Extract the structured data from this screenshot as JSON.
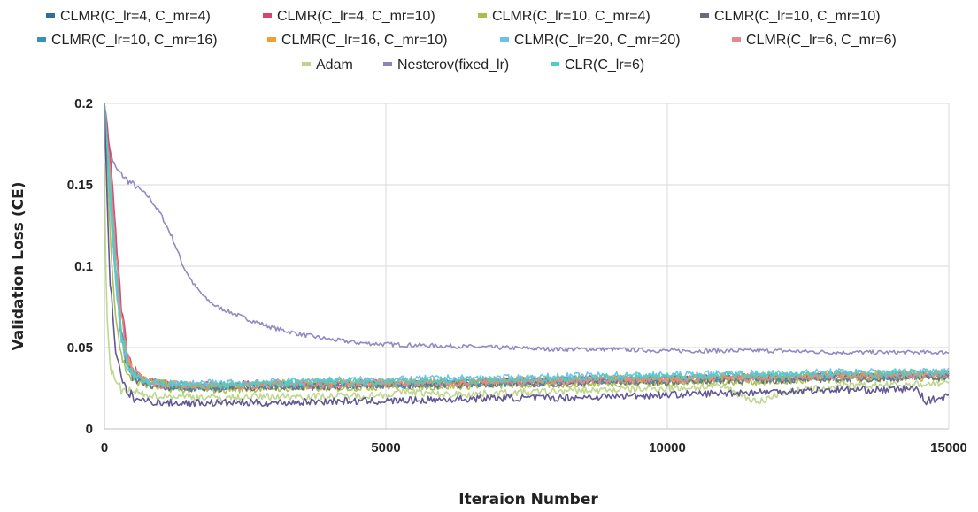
{
  "chart_data": {
    "type": "line",
    "title": "",
    "xlabel": "Iteraion Number",
    "ylabel": "Validation Loss (CE)",
    "xlim": [
      0,
      15000
    ],
    "ylim": [
      0,
      0.2
    ],
    "x_ticks": [
      "0",
      "5000",
      "10000",
      "15000"
    ],
    "y_ticks": [
      "0",
      "0.05",
      "0.1",
      "0.15",
      "0.2"
    ],
    "grid": true,
    "legend_position": "top",
    "series": [
      {
        "name": "CLMR(C_lr=4,  C_mr=4)",
        "color": "#2f6e99",
        "x": [
          0,
          100,
          200,
          300,
          400,
          500,
          700,
          1000,
          1500,
          2000,
          3000,
          4000,
          5000,
          6000,
          7000,
          8000,
          9000,
          10000,
          11000,
          12000,
          13000,
          14000,
          15000
        ],
        "y": [
          0.2,
          0.16,
          0.11,
          0.07,
          0.045,
          0.035,
          0.03,
          0.027,
          0.026,
          0.026,
          0.027,
          0.027,
          0.028,
          0.028,
          0.029,
          0.03,
          0.03,
          0.031,
          0.031,
          0.032,
          0.032,
          0.033,
          0.033
        ]
      },
      {
        "name": "CLMR(C_lr=4,  C_mr=10)",
        "color": "#d6446b",
        "x": [
          0,
          100,
          200,
          300,
          400,
          500,
          700,
          1000,
          1500,
          2000,
          3000,
          4000,
          5000,
          6000,
          7000,
          8000,
          9000,
          10000,
          11000,
          12000,
          13000,
          14000,
          15000
        ],
        "y": [
          0.2,
          0.17,
          0.12,
          0.075,
          0.05,
          0.037,
          0.031,
          0.028,
          0.027,
          0.027,
          0.028,
          0.028,
          0.028,
          0.029,
          0.029,
          0.03,
          0.031,
          0.031,
          0.032,
          0.032,
          0.033,
          0.033,
          0.034
        ]
      },
      {
        "name": "CLMR(C_lr=10,  C_mr=4)",
        "color": "#a9bf4a",
        "x": [
          0,
          100,
          200,
          300,
          400,
          500,
          700,
          1000,
          1500,
          2000,
          3000,
          4000,
          5000,
          6000,
          7000,
          8000,
          9000,
          10000,
          11000,
          12000,
          13000,
          14000,
          15000
        ],
        "y": [
          0.19,
          0.12,
          0.07,
          0.045,
          0.035,
          0.03,
          0.027,
          0.025,
          0.024,
          0.024,
          0.025,
          0.025,
          0.026,
          0.026,
          0.027,
          0.027,
          0.028,
          0.028,
          0.029,
          0.029,
          0.03,
          0.031,
          0.031
        ]
      },
      {
        "name": "CLMR(C_lr=10,  C_mr=10)",
        "color": "#6a6a78",
        "x": [
          0,
          100,
          200,
          300,
          400,
          500,
          700,
          1000,
          1500,
          2000,
          3000,
          4000,
          5000,
          6000,
          7000,
          8000,
          9000,
          10000,
          11000,
          12000,
          13000,
          14000,
          15000
        ],
        "y": [
          0.2,
          0.14,
          0.09,
          0.055,
          0.04,
          0.032,
          0.028,
          0.026,
          0.025,
          0.025,
          0.026,
          0.026,
          0.027,
          0.027,
          0.028,
          0.028,
          0.029,
          0.029,
          0.03,
          0.03,
          0.031,
          0.031,
          0.032
        ]
      },
      {
        "name": "CLMR(C_lr=10,  C_mr=16)",
        "color": "#3a8fc0",
        "x": [
          0,
          100,
          200,
          300,
          400,
          500,
          700,
          1000,
          1500,
          2000,
          3000,
          4000,
          5000,
          6000,
          7000,
          8000,
          9000,
          10000,
          11000,
          12000,
          13000,
          14000,
          15000
        ],
        "y": [
          0.2,
          0.15,
          0.1,
          0.06,
          0.042,
          0.034,
          0.029,
          0.027,
          0.026,
          0.026,
          0.027,
          0.027,
          0.027,
          0.028,
          0.028,
          0.029,
          0.03,
          0.03,
          0.031,
          0.031,
          0.032,
          0.032,
          0.033
        ]
      },
      {
        "name": "CLMR(C_lr=16,  C_mr=10)",
        "color": "#f0a030",
        "x": [
          0,
          100,
          200,
          300,
          400,
          500,
          700,
          1000,
          1500,
          2000,
          3000,
          4000,
          5000,
          6000,
          7000,
          8000,
          9000,
          10000,
          11000,
          12000,
          13000,
          14000,
          15000
        ],
        "y": [
          0.2,
          0.15,
          0.1,
          0.06,
          0.045,
          0.035,
          0.03,
          0.028,
          0.027,
          0.027,
          0.028,
          0.029,
          0.029,
          0.029,
          0.03,
          0.03,
          0.031,
          0.031,
          0.032,
          0.033,
          0.033,
          0.034,
          0.034
        ]
      },
      {
        "name": "CLMR(C_lr=20,  C_mr=20)",
        "color": "#6cc0ea",
        "x": [
          0,
          100,
          200,
          300,
          400,
          500,
          700,
          1000,
          1500,
          2000,
          3000,
          4000,
          5000,
          6000,
          7000,
          8000,
          9000,
          10000,
          11000,
          12000,
          13000,
          14000,
          15000
        ],
        "y": [
          0.2,
          0.14,
          0.09,
          0.055,
          0.04,
          0.033,
          0.029,
          0.028,
          0.028,
          0.028,
          0.029,
          0.03,
          0.03,
          0.031,
          0.031,
          0.032,
          0.033,
          0.033,
          0.034,
          0.034,
          0.035,
          0.035,
          0.036
        ]
      },
      {
        "name": "CLMR(C_lr=6,  C_mr=6)",
        "color": "#e08a8a",
        "x": [
          0,
          100,
          200,
          300,
          400,
          500,
          700,
          1000,
          1500,
          2000,
          3000,
          4000,
          5000,
          6000,
          7000,
          8000,
          9000,
          10000,
          11000,
          12000,
          13000,
          14000,
          15000
        ],
        "y": [
          0.2,
          0.16,
          0.11,
          0.07,
          0.048,
          0.036,
          0.03,
          0.027,
          0.026,
          0.026,
          0.027,
          0.027,
          0.028,
          0.028,
          0.029,
          0.029,
          0.03,
          0.03,
          0.031,
          0.031,
          0.032,
          0.032,
          0.033
        ]
      },
      {
        "name": "Adam",
        "color": "#bcd58a",
        "x": [
          0,
          30,
          60,
          100,
          150,
          200,
          300,
          500,
          800,
          1000,
          1500,
          2000,
          3000,
          4000,
          5000,
          5400,
          6000,
          7000,
          8000,
          9000,
          10000,
          11000,
          11500,
          11600,
          12000,
          13000,
          14000,
          15000
        ],
        "y": [
          0.16,
          0.09,
          0.055,
          0.04,
          0.033,
          0.028,
          0.024,
          0.022,
          0.021,
          0.02,
          0.02,
          0.019,
          0.02,
          0.02,
          0.021,
          0.023,
          0.021,
          0.022,
          0.023,
          0.024,
          0.025,
          0.026,
          0.018,
          0.016,
          0.022,
          0.026,
          0.027,
          0.028
        ]
      },
      {
        "name": "Nesterov(fixed_lr)",
        "color": "#8f82c2",
        "x": [
          0,
          100,
          200,
          400,
          600,
          800,
          1000,
          1200,
          1400,
          1600,
          1800,
          2000,
          2500,
          3000,
          3500,
          4000,
          4500,
          5000,
          6000,
          7000,
          8000,
          9000,
          10000,
          11000,
          12000,
          13000,
          14000,
          15000
        ],
        "y": [
          0.2,
          0.17,
          0.16,
          0.153,
          0.148,
          0.142,
          0.132,
          0.118,
          0.1,
          0.088,
          0.08,
          0.075,
          0.068,
          0.062,
          0.058,
          0.055,
          0.053,
          0.052,
          0.051,
          0.05,
          0.049,
          0.049,
          0.048,
          0.048,
          0.048,
          0.047,
          0.047,
          0.047
        ]
      },
      {
        "name": "CLR(C_lr=6)",
        "color": "#4cd0c0",
        "x": [
          0,
          100,
          200,
          300,
          400,
          500,
          700,
          1000,
          1500,
          2000,
          3000,
          4000,
          5000,
          6000,
          7000,
          8000,
          9000,
          10000,
          11000,
          12000,
          13000,
          14000,
          15000
        ],
        "y": [
          0.2,
          0.15,
          0.1,
          0.06,
          0.043,
          0.034,
          0.03,
          0.028,
          0.027,
          0.027,
          0.028,
          0.029,
          0.029,
          0.03,
          0.03,
          0.031,
          0.032,
          0.032,
          0.033,
          0.033,
          0.034,
          0.034,
          0.035
        ]
      },
      {
        "name": "",
        "color": "#5b4f8e",
        "x": [
          0,
          50,
          100,
          200,
          300,
          400,
          600,
          800,
          1000,
          1500,
          2000,
          3000,
          4000,
          5000,
          6000,
          7000,
          8000,
          9000,
          10000,
          11000,
          12000,
          13000,
          14000,
          14400,
          14600,
          15000
        ],
        "y": [
          0.2,
          0.14,
          0.09,
          0.05,
          0.03,
          0.022,
          0.018,
          0.017,
          0.016,
          0.016,
          0.016,
          0.016,
          0.017,
          0.017,
          0.018,
          0.019,
          0.019,
          0.02,
          0.021,
          0.022,
          0.023,
          0.024,
          0.024,
          0.025,
          0.017,
          0.02
        ]
      }
    ]
  }
}
